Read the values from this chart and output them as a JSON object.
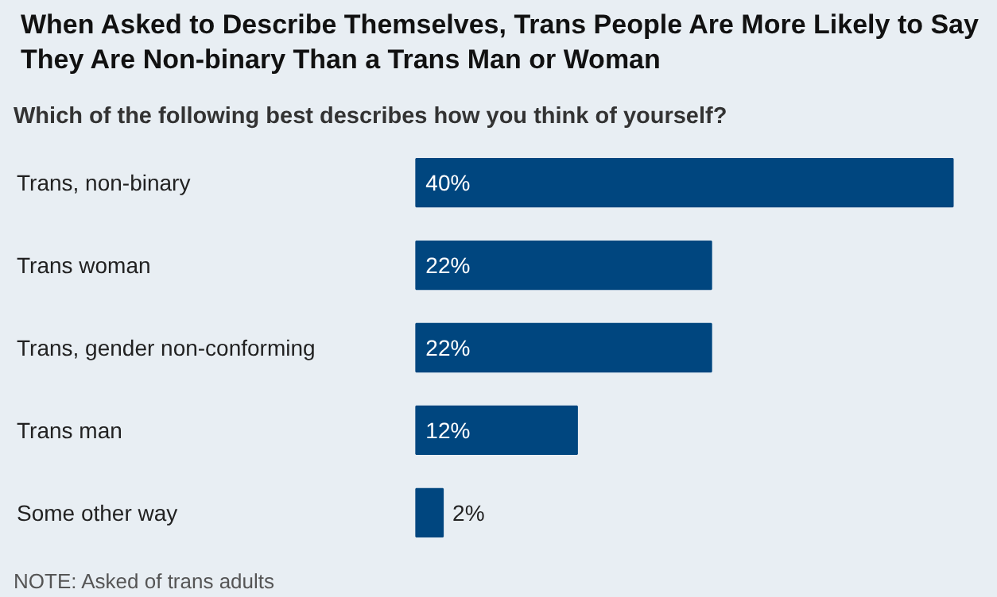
{
  "chart_data": {
    "type": "bar",
    "orientation": "horizontal",
    "title": "When Asked to Describe Themselves, Trans People Are More Likely to Say They Are Non-binary Than a Trans Man or Woman",
    "subtitle": "Which of the following best describes how you think of yourself?",
    "categories": [
      "Trans, non-binary",
      "Trans woman",
      "Trans, gender non-conforming",
      "Trans man",
      "Some other way"
    ],
    "values": [
      40,
      22,
      22,
      12,
      2
    ],
    "value_labels": [
      "40%",
      "22%",
      "22%",
      "12%",
      "2%"
    ],
    "color": "#00467f",
    "annotations": [
      "NOTE: Asked of trans adults"
    ]
  }
}
